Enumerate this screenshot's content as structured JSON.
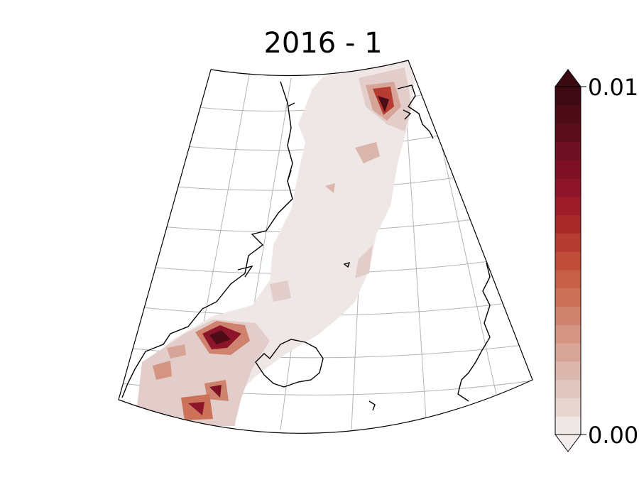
{
  "title": "2016 - 1",
  "colorbar": {
    "max_label": "0.01",
    "min_label": "0.00",
    "colors": [
      "#efe6e6",
      "#e7d5d2",
      "#e1c6c0",
      "#dbb6ac",
      "#d7a597",
      "#d39482",
      "#cf836e",
      "#cb7259",
      "#c66047",
      "#bf4d39",
      "#b63b30",
      "#aa2a2b",
      "#9d1c2a",
      "#8e1429",
      "#7e1026",
      "#6d0e22",
      "#5c0d1d",
      "#4c0c18",
      "#3d0a13"
    ],
    "over_color": "#3a0a12",
    "under_color": "#f2ecec"
  },
  "map": {
    "projection": "conic",
    "graticule": true,
    "coastline_color": "#000000",
    "grid_color": "#b3b3b3"
  }
}
